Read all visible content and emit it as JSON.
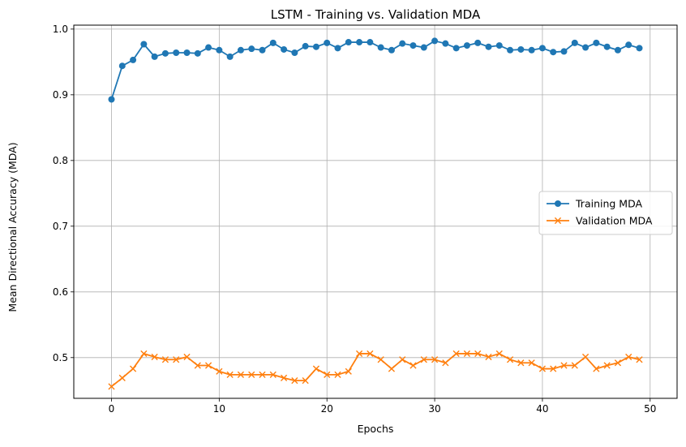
{
  "chart_data": {
    "type": "line",
    "title": "LSTM - Training vs. Validation MDA",
    "xlabel": "Epochs",
    "ylabel": "Mean Directional Accuracy (MDA)",
    "xlim": [
      -3.5,
      52.5
    ],
    "ylim": [
      0.438,
      1.006
    ],
    "xticks": [
      0,
      10,
      20,
      30,
      40,
      50
    ],
    "yticks": [
      0.5,
      0.6,
      0.7,
      0.8,
      0.9,
      1.0
    ],
    "xtick_labels": [
      "0",
      "10",
      "20",
      "30",
      "40",
      "50"
    ],
    "ytick_labels": [
      "0.5",
      "0.6",
      "0.7",
      "0.8",
      "0.9",
      "1.0"
    ],
    "grid": true,
    "legend_position": "center-right",
    "x": [
      0,
      1,
      2,
      3,
      4,
      5,
      6,
      7,
      8,
      9,
      10,
      11,
      12,
      13,
      14,
      15,
      16,
      17,
      18,
      19,
      20,
      21,
      22,
      23,
      24,
      25,
      26,
      27,
      28,
      29,
      30,
      31,
      32,
      33,
      34,
      35,
      36,
      37,
      38,
      39,
      40,
      41,
      42,
      43,
      44,
      45,
      46,
      47,
      48,
      49
    ],
    "series": [
      {
        "name": "Training MDA",
        "color": "#1f77b4",
        "marker": "circle",
        "values": [
          0.893,
          0.944,
          0.953,
          0.977,
          0.958,
          0.963,
          0.964,
          0.964,
          0.963,
          0.972,
          0.968,
          0.958,
          0.968,
          0.97,
          0.968,
          0.979,
          0.969,
          0.964,
          0.974,
          0.973,
          0.979,
          0.971,
          0.98,
          0.98,
          0.98,
          0.972,
          0.968,
          0.978,
          0.975,
          0.972,
          0.982,
          0.978,
          0.971,
          0.975,
          0.979,
          0.973,
          0.975,
          0.968,
          0.969,
          0.968,
          0.971,
          0.965,
          0.966,
          0.979,
          0.972,
          0.979,
          0.973,
          0.968,
          0.976,
          0.971
        ]
      },
      {
        "name": "Validation MDA",
        "color": "#ff7f0e",
        "marker": "x",
        "values": [
          0.456,
          0.469,
          0.483,
          0.506,
          0.501,
          0.497,
          0.497,
          0.501,
          0.488,
          0.488,
          0.479,
          0.474,
          0.474,
          0.474,
          0.474,
          0.474,
          0.469,
          0.465,
          0.465,
          0.483,
          0.474,
          0.474,
          0.479,
          0.506,
          0.506,
          0.497,
          0.483,
          0.497,
          0.488,
          0.497,
          0.497,
          0.492,
          0.506,
          0.506,
          0.506,
          0.501,
          0.506,
          0.497,
          0.492,
          0.492,
          0.483,
          0.483,
          0.488,
          0.488,
          0.501,
          0.483,
          0.488,
          0.492,
          0.501,
          0.497
        ]
      }
    ]
  }
}
